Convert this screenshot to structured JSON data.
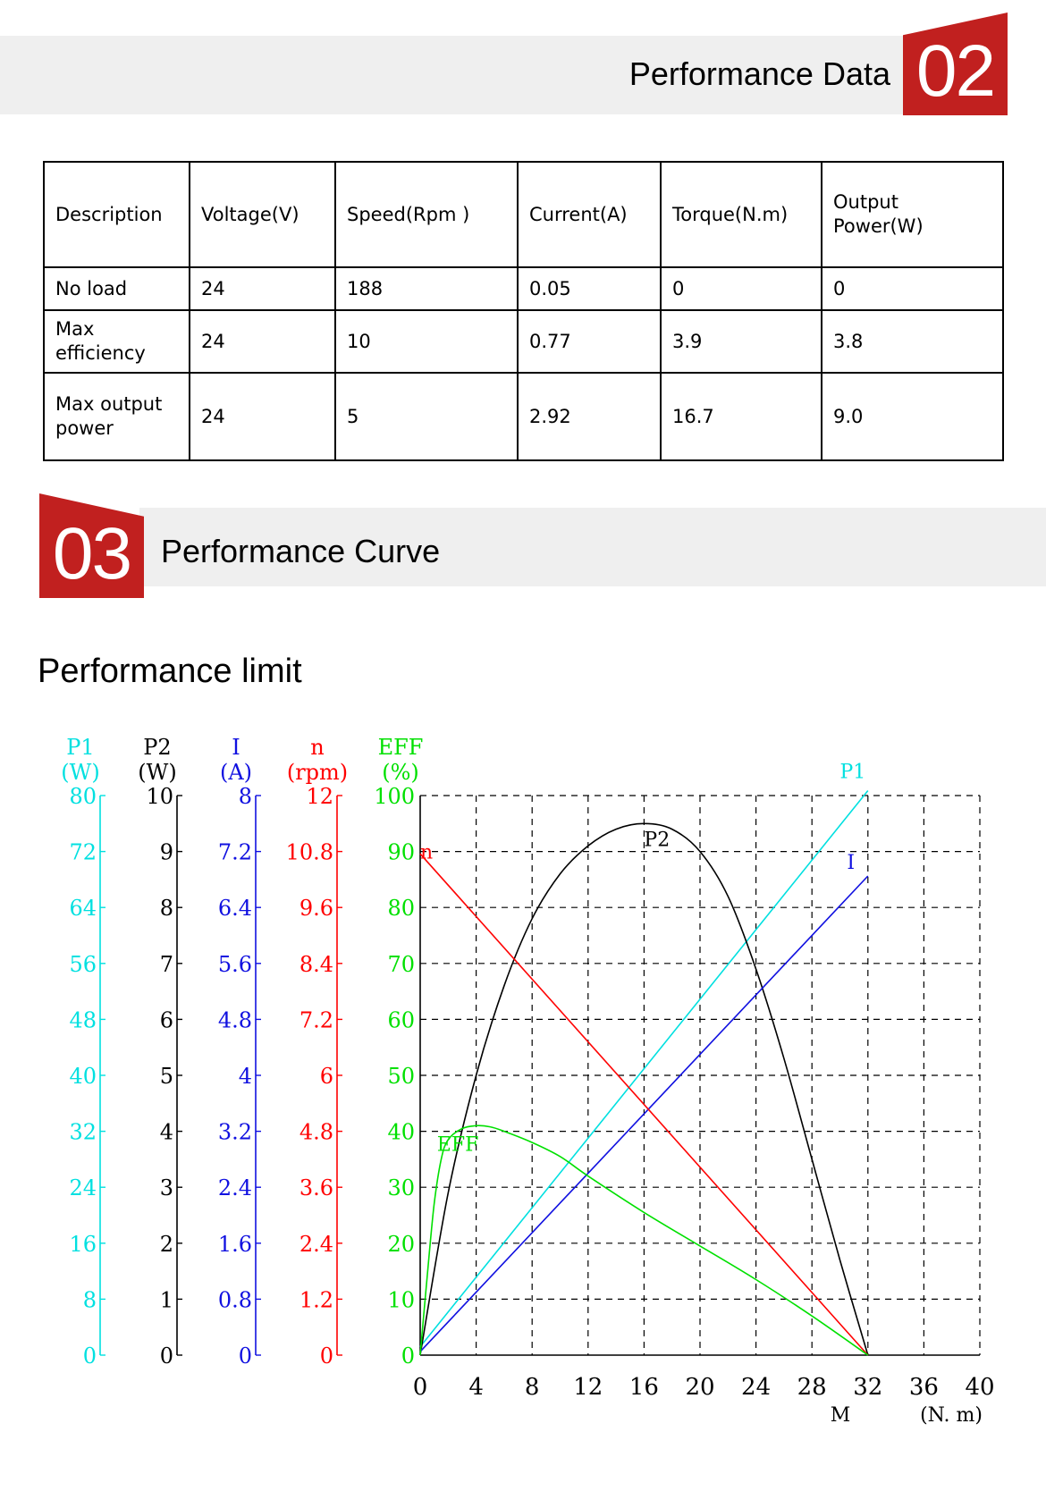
{
  "section1": {
    "number": "02",
    "title": "Performance Data"
  },
  "table": {
    "headers": [
      "Description",
      "Voltage(V)",
      "Speed(Rpm )",
      "Current(A)",
      "Torque(N.m)",
      "Output Power(W)"
    ],
    "rows": [
      [
        "No load",
        "24",
        "188",
        "0.05",
        "0",
        "0"
      ],
      [
        "Max efficiency",
        "24",
        "10",
        "0.77",
        "3.9",
        "3.8"
      ],
      [
        "Max output power",
        "24",
        "5",
        "2.92",
        "16.7",
        "9.0"
      ]
    ]
  },
  "section2": {
    "number": "03",
    "title": "Performance Curve"
  },
  "subtitle": "Performance limit",
  "colors": {
    "P1": "#00e0e0",
    "P2": "#000000",
    "I": "#1010e0",
    "n": "#ff0000",
    "EFF": "#00e000",
    "accent": "#c1201f"
  },
  "chart_data": {
    "type": "line",
    "title": "",
    "xlabel": "M",
    "xunit": "(N. m)",
    "xlim": [
      0,
      40
    ],
    "xticks": [
      "0",
      "4",
      "8",
      "12",
      "16",
      "20",
      "24",
      "28",
      "32",
      "36",
      "40"
    ],
    "grid": true,
    "axes": [
      {
        "key": "P1",
        "name": "P1",
        "unit": "(W)",
        "color": "#00e0e0",
        "ticks": [
          "0",
          "8",
          "16",
          "24",
          "32",
          "40",
          "48",
          "56",
          "64",
          "72",
          "80"
        ]
      },
      {
        "key": "P2",
        "name": "P2",
        "unit": "(W)",
        "color": "#000000",
        "ticks": [
          "0",
          "1",
          "2",
          "3",
          "4",
          "5",
          "6",
          "7",
          "8",
          "9",
          "10"
        ]
      },
      {
        "key": "I",
        "name": "I",
        "unit": "(A)",
        "color": "#1010e0",
        "ticks": [
          "0",
          "0.8",
          "1.6",
          "2.4",
          "3.2",
          "4",
          "4.8",
          "5.6",
          "6.4",
          "7.2",
          "8"
        ]
      },
      {
        "key": "n",
        "name": "n",
        "unit": "(rpm)",
        "color": "#ff0000",
        "ticks": [
          "0",
          "1.2",
          "2.4",
          "3.6",
          "4.8",
          "6",
          "7.2",
          "8.4",
          "9.6",
          "10.8",
          "12"
        ]
      },
      {
        "key": "EFF",
        "name": "EFF",
        "unit": "(%)",
        "color": "#00e000",
        "ticks": [
          "0",
          "10",
          "20",
          "30",
          "40",
          "50",
          "60",
          "70",
          "80",
          "90",
          "100"
        ]
      }
    ],
    "series": [
      {
        "name": "P1",
        "axis": "P1",
        "color": "#00e0e0",
        "label_at": [
          30,
          82.5
        ],
        "points": [
          [
            0,
            1.2
          ],
          [
            32,
            80.7
          ]
        ]
      },
      {
        "name": "P2",
        "axis": "P2",
        "color": "#000000",
        "label_at": [
          16,
          9.1
        ],
        "points": [
          [
            0,
            0
          ],
          [
            2,
            2.9
          ],
          [
            4,
            5.0
          ],
          [
            6,
            6.6
          ],
          [
            8,
            7.8
          ],
          [
            10,
            8.6
          ],
          [
            12,
            9.1
          ],
          [
            14,
            9.4
          ],
          [
            16,
            9.5
          ],
          [
            18,
            9.4
          ],
          [
            20,
            9.0
          ],
          [
            22,
            8.2
          ],
          [
            24,
            6.9
          ],
          [
            26,
            5.3
          ],
          [
            28,
            3.5
          ],
          [
            30,
            1.7
          ],
          [
            32,
            0
          ]
        ]
      },
      {
        "name": "I",
        "axis": "I",
        "color": "#1010e0",
        "label_at": [
          30.5,
          6.95
        ],
        "points": [
          [
            0,
            0.05
          ],
          [
            32,
            6.85
          ]
        ]
      },
      {
        "name": "n",
        "axis": "n",
        "color": "#ff0000",
        "label_at": [
          0,
          10.65
        ],
        "points": [
          [
            0,
            10.75
          ],
          [
            32,
            0
          ]
        ]
      },
      {
        "name": "EFF",
        "axis": "EFF",
        "color": "#00e000",
        "label_at": [
          1.2,
          36.5
        ],
        "points": [
          [
            0,
            0
          ],
          [
            0.5,
            14
          ],
          [
            1,
            27
          ],
          [
            1.5,
            35
          ],
          [
            2,
            38.5
          ],
          [
            3,
            40.5
          ],
          [
            4,
            41
          ],
          [
            5,
            40.8
          ],
          [
            6,
            40
          ],
          [
            8,
            38
          ],
          [
            10,
            35.5
          ],
          [
            12,
            32
          ],
          [
            16,
            25.5
          ],
          [
            20,
            19.5
          ],
          [
            24,
            13.5
          ],
          [
            28,
            7
          ],
          [
            32,
            0
          ]
        ]
      }
    ]
  }
}
